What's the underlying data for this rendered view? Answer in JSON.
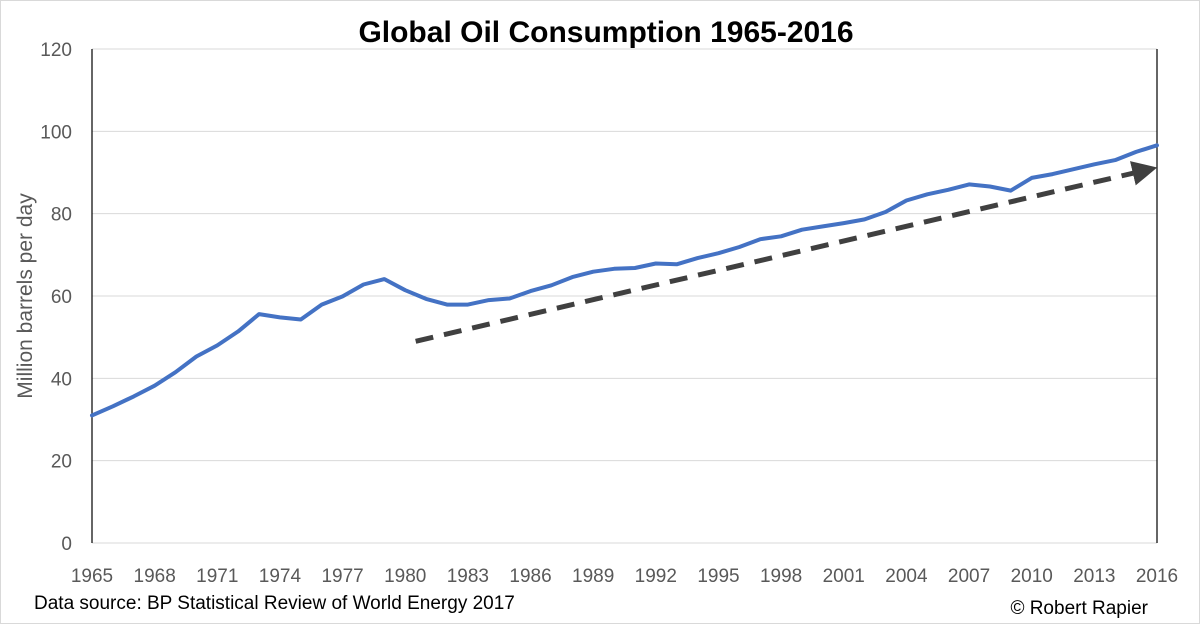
{
  "chart_data": {
    "type": "line",
    "title": "Global Oil Consumption 1965-2016",
    "xlabel": "",
    "ylabel": "Million barrels per day",
    "xlim": [
      1965,
      2016
    ],
    "ylim": [
      0,
      120
    ],
    "y_ticks": [
      0,
      20,
      40,
      60,
      80,
      100,
      120
    ],
    "x_tick_labels": [
      "1965",
      "1968",
      "1971",
      "1974",
      "1977",
      "1980",
      "1983",
      "1986",
      "1989",
      "1992",
      "1995",
      "1998",
      "2001",
      "2004",
      "2007",
      "2010",
      "2013",
      "2016"
    ],
    "grid": true,
    "series": [
      {
        "name": "Global oil consumption",
        "color": "#4472c4",
        "x": [
          1965,
          1966,
          1967,
          1968,
          1969,
          1970,
          1971,
          1972,
          1973,
          1974,
          1975,
          1976,
          1977,
          1978,
          1979,
          1980,
          1981,
          1982,
          1983,
          1984,
          1985,
          1986,
          1987,
          1988,
          1989,
          1990,
          1991,
          1992,
          1993,
          1994,
          1995,
          1996,
          1997,
          1998,
          1999,
          2000,
          2001,
          2002,
          2003,
          2004,
          2005,
          2006,
          2007,
          2008,
          2009,
          2010,
          2011,
          2012,
          2013,
          2014,
          2015,
          2016
        ],
        "values": [
          31.0,
          33.2,
          35.6,
          38.2,
          41.5,
          45.3,
          48.0,
          51.4,
          55.6,
          54.8,
          54.3,
          57.9,
          59.9,
          62.8,
          64.1,
          61.4,
          59.3,
          57.9,
          57.9,
          59.0,
          59.4,
          61.2,
          62.6,
          64.6,
          65.9,
          66.6,
          66.8,
          67.9,
          67.7,
          69.2,
          70.4,
          71.9,
          73.8,
          74.5,
          76.1,
          76.9,
          77.7,
          78.6,
          80.4,
          83.2,
          84.7,
          85.8,
          87.1,
          86.6,
          85.6,
          88.7,
          89.6,
          90.8,
          92.0,
          93.0,
          95.0,
          96.6
        ]
      }
    ],
    "annotations": [
      {
        "type": "trend-arrow",
        "style": "dashed",
        "color": "#404040",
        "from": [
          1980.5,
          49.0
        ],
        "to": [
          2016,
          91.0
        ]
      }
    ]
  },
  "footer": {
    "source": "Data source: BP Statistical Review of World Energy 2017",
    "credit": "© Robert Rapier"
  }
}
